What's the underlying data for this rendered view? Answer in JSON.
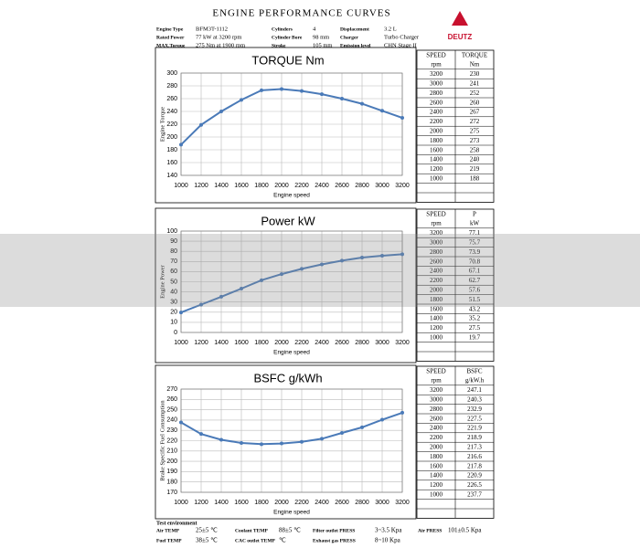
{
  "header": {
    "title": "ENGINE PERFORMANCE CURVES",
    "logo": "DEUTZ",
    "rows": [
      [
        {
          "label": "Engine Type",
          "value": "BFM3T-1112"
        },
        {
          "label": "Cylinders",
          "value": "4"
        },
        {
          "label": "Displacement",
          "value": "3.2 L"
        }
      ],
      [
        {
          "label": "Rated Power",
          "value": "77 kW at 3200 rpm"
        },
        {
          "label": "Cylinder Bore",
          "value": "98 mm"
        },
        {
          "label": "Charger",
          "value": "Turbo Charger"
        }
      ],
      [
        {
          "label": "MAX.Torque",
          "value": "275 Nm at 1900 rpm"
        },
        {
          "label": "Stroke",
          "value": "105 mm"
        },
        {
          "label": "Emission level",
          "value": "CHN Stage II"
        }
      ]
    ]
  },
  "chart_data": [
    {
      "type": "line",
      "title": "TORQUE Nm",
      "x_label": "Engine speed",
      "y_label": "Engine Torque",
      "color": "#4a7ab8",
      "grid": true,
      "x": [
        1000,
        1200,
        1400,
        1600,
        1800,
        2000,
        2200,
        2400,
        2600,
        2800,
        3000,
        3200
      ],
      "values": [
        188,
        219,
        240,
        258,
        273,
        275,
        272,
        267,
        260,
        252,
        241,
        230
      ],
      "xlim": [
        1000,
        3200
      ],
      "xticks": [
        1000,
        1200,
        1400,
        1600,
        1800,
        2000,
        2200,
        2400,
        2600,
        2800,
        3000,
        3200
      ],
      "ylim": [
        140,
        300
      ],
      "yticks": [
        140,
        160,
        180,
        200,
        220,
        240,
        260,
        280,
        300
      ]
    },
    {
      "type": "line",
      "title": "Power kW",
      "x_label": "Engine speed",
      "y_label": "Engine Power",
      "color": "#4a7ab8",
      "grid": true,
      "x": [
        1000,
        1200,
        1400,
        1600,
        1800,
        2000,
        2200,
        2400,
        2600,
        2800,
        3000,
        3200
      ],
      "values": [
        19.7,
        27.5,
        35.2,
        43.2,
        51.5,
        57.6,
        62.7,
        67.1,
        70.8,
        73.9,
        75.7,
        77.1
      ],
      "xlim": [
        1000,
        3200
      ],
      "xticks": [
        1000,
        1200,
        1400,
        1600,
        1800,
        2000,
        2200,
        2400,
        2600,
        2800,
        3000,
        3200
      ],
      "ylim": [
        0,
        100
      ],
      "yticks": [
        0,
        10,
        20,
        30,
        40,
        50,
        60,
        70,
        80,
        90,
        100
      ]
    },
    {
      "type": "line",
      "title": "BSFC g/kWh",
      "x_label": "Engine speed",
      "y_label": "Brake Specific Fuel Consumption",
      "color": "#4a7ab8",
      "grid": true,
      "x": [
        1000,
        1200,
        1400,
        1600,
        1800,
        2000,
        2200,
        2400,
        2600,
        2800,
        3000,
        3200
      ],
      "values": [
        237.7,
        226.5,
        220.9,
        217.8,
        216.6,
        217.3,
        218.9,
        221.9,
        227.5,
        232.9,
        240.3,
        247.1
      ],
      "xlim": [
        1000,
        3200
      ],
      "xticks": [
        1000,
        1200,
        1400,
        1600,
        1800,
        2000,
        2200,
        2400,
        2600,
        2800,
        3000,
        3200
      ],
      "ylim": [
        170,
        270
      ],
      "yticks": [
        170,
        180,
        190,
        200,
        210,
        220,
        230,
        240,
        250,
        260,
        270
      ]
    }
  ],
  "tables": [
    {
      "headers": [
        "SPEED",
        "TORQUE"
      ],
      "units": [
        "rpm",
        "Nm"
      ],
      "rows": [
        [
          3200,
          230
        ],
        [
          3000,
          241
        ],
        [
          2800,
          252
        ],
        [
          2600,
          260
        ],
        [
          2400,
          267
        ],
        [
          2200,
          272
        ],
        [
          2000,
          275
        ],
        [
          1800,
          273
        ],
        [
          1600,
          258
        ],
        [
          1400,
          240
        ],
        [
          1200,
          219
        ],
        [
          1000,
          188
        ]
      ]
    },
    {
      "headers": [
        "SPEED",
        "P"
      ],
      "units": [
        "rpm",
        "kW"
      ],
      "rows": [
        [
          3200,
          77.1
        ],
        [
          3000,
          75.7
        ],
        [
          2800,
          73.9
        ],
        [
          2600,
          70.8
        ],
        [
          2400,
          67.1
        ],
        [
          2200,
          62.7
        ],
        [
          2000,
          57.6
        ],
        [
          1800,
          51.5
        ],
        [
          1600,
          43.2
        ],
        [
          1400,
          35.2
        ],
        [
          1200,
          27.5
        ],
        [
          1000,
          19.7
        ]
      ]
    },
    {
      "headers": [
        "SPEED",
        "BSFC"
      ],
      "units": [
        "rpm",
        "g/kW.h"
      ],
      "rows": [
        [
          3200,
          247.1
        ],
        [
          3000,
          240.3
        ],
        [
          2800,
          232.9
        ],
        [
          2600,
          227.5
        ],
        [
          2400,
          221.9
        ],
        [
          2200,
          218.9
        ],
        [
          2000,
          217.3
        ],
        [
          1800,
          216.6
        ],
        [
          1600,
          217.8
        ],
        [
          1400,
          220.9
        ],
        [
          1200,
          226.5
        ],
        [
          1000,
          237.7
        ]
      ]
    }
  ],
  "footer": {
    "title": "Test environment",
    "rows": [
      [
        {
          "label": "Air TEMP",
          "value": "25±5 ℃"
        },
        {
          "label": "Coolant TEMP",
          "value": "88±5 ℃"
        },
        {
          "label": "Filter outlet PRESS",
          "value": "3~3.5 Kpa"
        },
        {
          "label": "Air PRESS",
          "value": "101±0.5 Kpa"
        }
      ],
      [
        {
          "label": "Fuel TEMP",
          "value": "38±5 ℃"
        },
        {
          "label": "CAC outlet TEMP",
          "value": "℃"
        },
        {
          "label": "Exhaust gas PRESS",
          "value": "8~10 Kpa"
        }
      ]
    ]
  }
}
